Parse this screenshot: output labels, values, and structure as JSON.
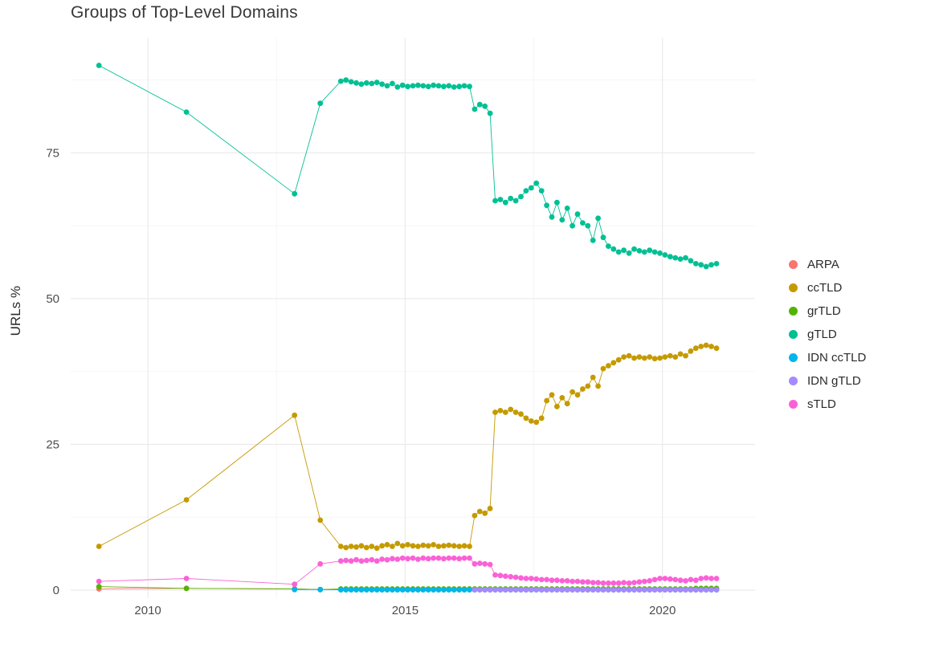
{
  "chart_data": {
    "type": "line",
    "title": "Groups of Top-Level Domains",
    "xlabel": "",
    "ylabel": "URLs %",
    "legend_position": "right",
    "xlim": [
      2008.5,
      2021.8
    ],
    "ylim": [
      0,
      92
    ],
    "x_ticks": [
      {
        "v": 2010,
        "label": "2010"
      },
      {
        "v": 2015,
        "label": "2015"
      },
      {
        "v": 2020,
        "label": "2020"
      }
    ],
    "y_ticks": [
      {
        "v": 0,
        "label": "0"
      },
      {
        "v": 25,
        "label": "25"
      },
      {
        "v": 50,
        "label": "50"
      },
      {
        "v": 75,
        "label": "75"
      }
    ],
    "x_minor": [
      2012.5,
      2017.5
    ],
    "y_minor": [
      12.5,
      37.5,
      62.5,
      87.5
    ],
    "grid": {
      "major_color": "#EBEBEB",
      "minor_color": "#F5F5F5",
      "background": "#FFFFFF"
    },
    "x": [
      2009.05,
      2010.75,
      2012.85,
      2013.35,
      2013.75,
      2013.85,
      2013.95,
      2014.05,
      2014.15,
      2014.25,
      2014.35,
      2014.45,
      2014.55,
      2014.65,
      2014.75,
      2014.85,
      2014.95,
      2015.05,
      2015.15,
      2015.25,
      2015.35,
      2015.45,
      2015.55,
      2015.65,
      2015.75,
      2015.85,
      2015.95,
      2016.05,
      2016.15,
      2016.25,
      2016.35,
      2016.45,
      2016.55,
      2016.65,
      2016.75,
      2016.85,
      2016.95,
      2017.05,
      2017.15,
      2017.25,
      2017.35,
      2017.45,
      2017.55,
      2017.65,
      2017.75,
      2017.85,
      2017.95,
      2018.05,
      2018.15,
      2018.25,
      2018.35,
      2018.45,
      2018.55,
      2018.65,
      2018.75,
      2018.85,
      2018.95,
      2019.05,
      2019.15,
      2019.25,
      2019.35,
      2019.45,
      2019.55,
      2019.65,
      2019.75,
      2019.85,
      2019.95,
      2020.05,
      2020.15,
      2020.25,
      2020.35,
      2020.45,
      2020.55,
      2020.65,
      2020.75,
      2020.85,
      2020.95,
      2021.05
    ],
    "series": [
      {
        "name": "ARPA",
        "color": "#F8766D",
        "values": [
          0.2,
          0.3,
          0.2,
          0.1,
          0.1,
          0.1,
          0.1,
          0.1,
          0.1,
          0.1,
          0.1,
          0.1,
          0.1,
          0.1,
          0.1,
          0.1,
          0.1,
          0.1,
          0.1,
          0.1,
          0.1,
          0.1,
          0.1,
          0.1,
          0.1,
          0.1,
          0.1,
          0.1,
          0.1,
          0.1,
          0.1,
          0.1,
          0.1,
          0.1,
          0.1,
          0.1,
          0.1,
          0.1,
          0.1,
          0.1,
          0.1,
          0.1,
          0.1,
          0.1,
          0.1,
          0.1,
          0.1,
          0.1,
          0.1,
          0.1,
          0.1,
          0.1,
          0.1,
          0.1,
          0.1,
          0.1,
          0.1,
          0.1,
          0.1,
          0.1,
          0.1,
          0.1,
          0.1,
          0.1,
          0.1,
          0.1,
          0.1,
          0.1,
          0.1,
          0.1,
          0.1,
          0.1,
          0.1,
          0.1,
          0.1,
          0.1,
          0.1,
          0.1
        ]
      },
      {
        "name": "ccTLD",
        "color": "#C49A00",
        "values": [
          7.5,
          15.5,
          30,
          12,
          7.5,
          7.3,
          7.5,
          7.4,
          7.6,
          7.3,
          7.5,
          7.2,
          7.6,
          7.8,
          7.5,
          8,
          7.6,
          7.8,
          7.6,
          7.5,
          7.7,
          7.6,
          7.8,
          7.5,
          7.6,
          7.7,
          7.6,
          7.5,
          7.6,
          7.5,
          12.8,
          13.5,
          13.2,
          14,
          30.5,
          30.8,
          30.5,
          31,
          30.5,
          30.2,
          29.5,
          29,
          28.8,
          29.5,
          32.5,
          33.5,
          31.5,
          33,
          32,
          34,
          33.5,
          34.5,
          35,
          36.5,
          35,
          38,
          38.5,
          39,
          39.5,
          40,
          40.2,
          39.8,
          40,
          39.8,
          40,
          39.7,
          39.8,
          40,
          40.2,
          40,
          40.5,
          40.2,
          41,
          41.5,
          41.8,
          42,
          41.8,
          41.5
        ]
      },
      {
        "name": "grTLD",
        "color": "#53B400",
        "values": [
          0.6,
          0.3,
          0.2,
          0.1,
          0.2,
          0.2,
          0.2,
          0.2,
          0.2,
          0.2,
          0.2,
          0.2,
          0.2,
          0.2,
          0.2,
          0.2,
          0.2,
          0.2,
          0.2,
          0.2,
          0.2,
          0.2,
          0.2,
          0.2,
          0.2,
          0.2,
          0.2,
          0.2,
          0.2,
          0.2,
          0.2,
          0.2,
          0.2,
          0.2,
          0.2,
          0.2,
          0.2,
          0.2,
          0.2,
          0.2,
          0.2,
          0.2,
          0.2,
          0.2,
          0.2,
          0.2,
          0.2,
          0.2,
          0.2,
          0.2,
          0.2,
          0.2,
          0.2,
          0.2,
          0.2,
          0.2,
          0.2,
          0.2,
          0.2,
          0.2,
          0.2,
          0.2,
          0.2,
          0.2,
          0.2,
          0.2,
          0.2,
          0.2,
          0.2,
          0.2,
          0.2,
          0.2,
          0.2,
          0.3,
          0.3,
          0.3,
          0.3,
          0.3
        ]
      },
      {
        "name": "gTLD",
        "color": "#00C094",
        "values": [
          90,
          82,
          68,
          83.5,
          87.3,
          87.5,
          87.2,
          87,
          86.8,
          87,
          86.9,
          87.1,
          86.8,
          86.5,
          86.9,
          86.3,
          86.6,
          86.4,
          86.5,
          86.6,
          86.5,
          86.4,
          86.6,
          86.5,
          86.4,
          86.5,
          86.3,
          86.4,
          86.5,
          86.4,
          82.5,
          83.3,
          83,
          81.8,
          66.8,
          67,
          66.5,
          67.2,
          66.8,
          67.5,
          68.5,
          69,
          69.8,
          68.5,
          66,
          64,
          66.5,
          63.5,
          65.5,
          62.5,
          64.5,
          63,
          62.5,
          60,
          63.8,
          60.5,
          59,
          58.5,
          58,
          58.3,
          57.8,
          58.5,
          58.2,
          58,
          58.3,
          58,
          57.8,
          57.5,
          57.2,
          57,
          56.8,
          57,
          56.5,
          56,
          55.8,
          55.5,
          55.8,
          56
        ]
      },
      {
        "name": "IDN ccTLD",
        "color": "#00B6EB",
        "values": [
          null,
          null,
          0.1,
          0.1,
          0.05,
          0.05,
          0.05,
          0.05,
          0.05,
          0.05,
          0.05,
          0.05,
          0.05,
          0.05,
          0.05,
          0.05,
          0.05,
          0.05,
          0.05,
          0.05,
          0.05,
          0.05,
          0.05,
          0.05,
          0.05,
          0.05,
          0.05,
          0.05,
          0.05,
          0.05,
          0.05,
          0.05,
          0.05,
          0.05,
          0.05,
          0.05,
          0.05,
          0.05,
          0.05,
          0.05,
          0.05,
          0.05,
          0.05,
          0.05,
          0.05,
          0.05,
          0.05,
          0.05,
          0.05,
          0.05,
          0.05,
          0.05,
          0.05,
          0.05,
          0.05,
          0.05,
          0.05,
          0.05,
          0.05,
          0.05,
          0.05,
          0.05,
          0.05,
          0.05,
          0.05,
          0.05,
          0.05,
          0.05,
          0.05,
          0.05,
          0.05,
          0.05,
          0.05,
          0.05,
          0.05,
          0.05,
          0.05,
          0.05
        ]
      },
      {
        "name": "IDN gTLD",
        "color": "#A58AFF",
        "values": [
          null,
          null,
          null,
          null,
          null,
          null,
          null,
          null,
          null,
          null,
          null,
          null,
          null,
          null,
          null,
          null,
          null,
          null,
          null,
          null,
          null,
          null,
          null,
          null,
          null,
          null,
          null,
          null,
          null,
          null,
          0.05,
          0.05,
          0.05,
          0.05,
          0.05,
          0.05,
          0.05,
          0.05,
          0.05,
          0.05,
          0.05,
          0.05,
          0.05,
          0.05,
          0.05,
          0.05,
          0.05,
          0.05,
          0.05,
          0.05,
          0.05,
          0.05,
          0.05,
          0.05,
          0.05,
          0.05,
          0.05,
          0.05,
          0.05,
          0.05,
          0.05,
          0.05,
          0.05,
          0.05,
          0.05,
          0.05,
          0.05,
          0.05,
          0.05,
          0.05,
          0.05,
          0.05,
          0.05,
          0.05,
          0.05,
          0.05,
          0.05,
          0.05
        ]
      },
      {
        "name": "sTLD",
        "color": "#FB61D7",
        "values": [
          1.5,
          2,
          1,
          4.5,
          5,
          5.1,
          5,
          5.2,
          5,
          5.1,
          5.2,
          5,
          5.3,
          5.2,
          5.4,
          5.3,
          5.5,
          5.4,
          5.5,
          5.3,
          5.5,
          5.4,
          5.5,
          5.5,
          5.4,
          5.5,
          5.5,
          5.4,
          5.5,
          5.5,
          4.5,
          4.6,
          4.5,
          4.4,
          2.6,
          2.5,
          2.4,
          2.3,
          2.2,
          2.1,
          2,
          2,
          1.9,
          1.8,
          1.8,
          1.7,
          1.7,
          1.6,
          1.6,
          1.5,
          1.5,
          1.4,
          1.4,
          1.3,
          1.3,
          1.2,
          1.2,
          1.2,
          1.2,
          1.3,
          1.2,
          1.3,
          1.4,
          1.5,
          1.6,
          1.8,
          2,
          2,
          1.9,
          1.8,
          1.7,
          1.6,
          1.8,
          1.7,
          2,
          2.1,
          2,
          2
        ]
      }
    ]
  }
}
